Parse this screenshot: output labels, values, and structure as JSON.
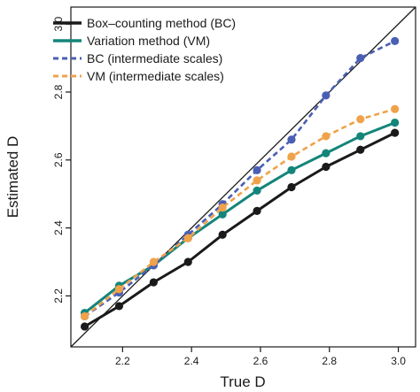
{
  "chart_data": {
    "type": "line",
    "title": "",
    "xlabel": "True D",
    "ylabel": "Estimated D",
    "xlim": [
      2.05,
      3.05
    ],
    "ylim": [
      2.05,
      3.05
    ],
    "xticks": [
      2.2,
      2.4,
      2.6,
      2.8,
      3.0
    ],
    "yticks": [
      2.2,
      2.4,
      2.6,
      2.8,
      3.0
    ],
    "xtick_labels": [
      "2.2",
      "2.4",
      "2.6",
      "2.8",
      "3.0"
    ],
    "ytick_labels": [
      "2.2",
      "2.4",
      "2.6",
      "2.8",
      "3.0"
    ],
    "grid": false,
    "legend_position": "top-left",
    "reference_line": {
      "type": "identity",
      "color": "#1a1a1a"
    },
    "x": [
      2.09,
      2.19,
      2.29,
      2.39,
      2.49,
      2.59,
      2.69,
      2.79,
      2.89,
      2.99
    ],
    "series": [
      {
        "name": "Box–counting method (BC)",
        "color": "#1a1a1a",
        "dash": "solid",
        "values": [
          2.11,
          2.17,
          2.24,
          2.3,
          2.38,
          2.45,
          2.52,
          2.58,
          2.63,
          2.68
        ]
      },
      {
        "name": "Variation method (VM)",
        "color": "#14857a",
        "dash": "solid",
        "values": [
          2.15,
          2.23,
          2.29,
          2.37,
          2.44,
          2.51,
          2.57,
          2.62,
          2.67,
          2.71
        ]
      },
      {
        "name": "BC (intermediate scales)",
        "color": "#4a5fb4",
        "dash": "dashed",
        "values": [
          2.14,
          2.21,
          2.29,
          2.38,
          2.47,
          2.57,
          2.66,
          2.79,
          2.9,
          2.95
        ]
      },
      {
        "name": "VM (intermediate scales)",
        "color": "#f0a24a",
        "dash": "dashed",
        "values": [
          2.14,
          2.22,
          2.3,
          2.37,
          2.46,
          2.54,
          2.61,
          2.67,
          2.72,
          2.75
        ]
      }
    ]
  }
}
